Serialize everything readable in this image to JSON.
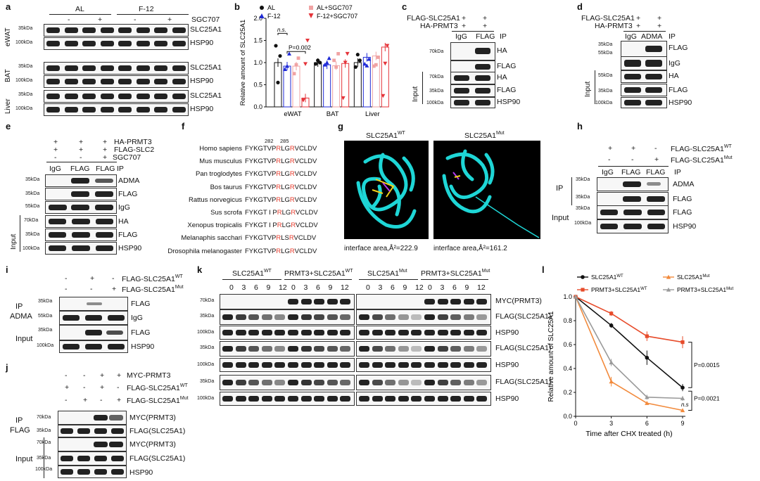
{
  "panels": {
    "a": {
      "letter": "a",
      "groups": [
        "AL",
        "F-12"
      ],
      "treat_label": "SGC707",
      "signs": [
        "-",
        "+",
        "-",
        "+"
      ],
      "tissues": [
        "eWAT",
        "BAT",
        "Liver"
      ],
      "markers": [
        "35kDa",
        "100kDa"
      ],
      "proteins": [
        "SLC25A1",
        "HSP90"
      ]
    },
    "b": {
      "letter": "b"
    },
    "c": {
      "letter": "c",
      "rows": [
        "FLAG-SLC25A1",
        "HA-PRMT3"
      ],
      "signs": [
        "+",
        "+"
      ],
      "ip_cols": [
        "IgG",
        "FLAG"
      ],
      "ip": "IP",
      "input": "Input",
      "markers": [
        "70kDa",
        "35kDa",
        "70kDa",
        "35kDa",
        "100kDa"
      ],
      "proteins": [
        "HA",
        "FLAG",
        "HA",
        "FLAG",
        "HSP90"
      ]
    },
    "d": {
      "letter": "d",
      "rows": [
        "FLAG-SLC25A1",
        "HA-PRMT3"
      ],
      "signs": [
        "+",
        "+"
      ],
      "ip_cols": [
        "IgG",
        "ADMA"
      ],
      "ip": "IP",
      "input": "Input",
      "markers": [
        "35kDa",
        "55kDa",
        "55kDa",
        "35kDa",
        "100kDa"
      ],
      "proteins": [
        "FLAG",
        "IgG",
        "HA",
        "FLAG",
        "HSP90"
      ]
    },
    "e": {
      "letter": "e",
      "rows": [
        "HA-PRMT3",
        "FLAG-SLC2",
        "SGC707"
      ],
      "signs": [
        [
          "+",
          "+",
          "+"
        ],
        [
          "+",
          "+",
          "+"
        ],
        [
          "-",
          "-",
          "+"
        ]
      ],
      "ip_cols": [
        "IgG",
        "FLAG",
        "FLAG"
      ],
      "ip": "IP",
      "input": "Input",
      "markers": [
        "35kDa",
        "35kDa",
        "55kDa",
        "70kDa",
        "35kDa",
        "100kDa"
      ],
      "proteins": [
        "ADMA",
        "FLAG",
        "IgG",
        "HA",
        "FLAG",
        "HSP90"
      ]
    },
    "f": {
      "letter": "f",
      "pos1": "282",
      "pos2": "285",
      "species": [
        "Homo sapiens",
        "Mus musculus",
        "Pan troglodytes",
        "Bos taurus",
        "Rattus norvegicus",
        "Sus scrofa",
        "Xenopus tropicalis",
        "Melanaphis sacchari",
        "Drosophila melanogaster"
      ],
      "seq": [
        [
          "FYKGTVP",
          "R",
          "LG",
          "R",
          "VCLDV"
        ],
        [
          "FYKGTVP",
          "R",
          "LG",
          "R",
          "VCLDV"
        ],
        [
          "FYKGTVP",
          "R",
          "LG",
          "R",
          "VCLDV"
        ],
        [
          "FYKGTVP",
          "R",
          "LG",
          "R",
          "VCLDV"
        ],
        [
          "FYKGTVP",
          "R",
          "LG",
          "R",
          "VCLDV"
        ],
        [
          "FYKGT I P",
          "R",
          "LG",
          "R",
          "VCLDV"
        ],
        [
          "FYKGT I P",
          "R",
          "LG",
          "R",
          "VCLDV"
        ],
        [
          "FYKGTVP",
          "R",
          "LS",
          "R",
          "VCLDV"
        ],
        [
          "FYKGTVP",
          "R",
          "LG",
          "R",
          "VCLDV"
        ]
      ]
    },
    "g": {
      "letter": "g",
      "title_wt": "SLC25A1",
      "sup_wt": "WT",
      "title_mut": "SLC25A1",
      "sup_mut": "Mut",
      "area_wt": "interface area,Å²=222.9",
      "area_mut": "interface area,Å²=161.2"
    },
    "h": {
      "letter": "h",
      "rows": [
        "FLAG-SLC25A1",
        "FLAG-SLC25A1"
      ],
      "sups": [
        "WT",
        "Mut"
      ],
      "signs": [
        [
          "+",
          "+",
          "-"
        ],
        [
          "-",
          "-",
          "+"
        ]
      ],
      "ip_cols": [
        "IgG",
        "FLAG",
        "FLAG"
      ],
      "ip": "IP",
      "ip_side": "IP",
      "input": "Input",
      "markers": [
        "35kDa",
        "35kDa",
        "35kDa",
        "100kDa"
      ],
      "proteins": [
        "ADMA",
        "FLAG",
        "FLAG",
        "HSP90"
      ]
    },
    "i": {
      "letter": "i",
      "rows": [
        "FLAG-SLC25A1",
        "FLAG-SLC25A1"
      ],
      "sups": [
        "WT",
        "Mut"
      ],
      "signs": [
        [
          "-",
          "+",
          "-"
        ],
        [
          "-",
          "-",
          "+"
        ]
      ],
      "ip_side": "IP",
      "ip_ab": "ADMA",
      "input": "Input",
      "markers": [
        "35kDa",
        "55kDa",
        "35kDa",
        "100kDa"
      ],
      "proteins": [
        "FLAG",
        "IgG",
        "FLAG",
        "HSP90"
      ]
    },
    "j": {
      "letter": "j",
      "rows": [
        "MYC-PRMT3",
        "FLAG-SLC25A1",
        "FLAG-SLC25A1"
      ],
      "sups": [
        "",
        "WT",
        "Mut"
      ],
      "signs": [
        [
          "-",
          "-",
          "+",
          "+"
        ],
        [
          "+",
          "-",
          "+",
          "-"
        ],
        [
          "-",
          "+",
          "-",
          "+"
        ]
      ],
      "ip_side": "IP",
      "ip_ab": "FLAG",
      "input": "Input",
      "markers": [
        "70kDa",
        "35kDa",
        "70kDa",
        "35kDa",
        "100kDa"
      ],
      "proteins": [
        "MYC(PRMT3)",
        "FLAG(SLC25A1)",
        "MYC(PRMT3)",
        "FLAG(SLC25A1)",
        "HSP90"
      ]
    },
    "k": {
      "letter": "k",
      "groups": [
        "SLC25A1",
        "PRMT3+SLC25A1",
        "SLC25A1",
        "PRMT3+SLC25A1"
      ],
      "group_sups": [
        "WT",
        "WT",
        "Mut",
        "Mut"
      ],
      "times": [
        "0",
        "3",
        "6",
        "9",
        "12"
      ],
      "markers": [
        "70kDa",
        "35kDa",
        "100kDa",
        "35kDa",
        "100kDa",
        "35kDa",
        "100kDa"
      ],
      "proteins": [
        "MYC(PRMT3)",
        "FLAG(SLC25A1)",
        "HSP90",
        "FLAG(SLC25A1)",
        "HSP90",
        "FLAG(SLC25A1)",
        "HSP90"
      ]
    },
    "l": {
      "letter": "l"
    }
  },
  "chart_data": [
    {
      "panel": "b",
      "type": "bar",
      "categories": [
        "eWAT",
        "BAT",
        "Liver"
      ],
      "ylabel": "Relative amount of SLC25A1",
      "ylim": [
        0,
        2.0
      ],
      "yticks": [
        "0.0",
        "0.5",
        "1.0",
        "1.5",
        "2.0"
      ],
      "series": [
        {
          "name": "AL",
          "color": "#111111",
          "values": [
            1.0,
            1.0,
            1.0
          ],
          "points": [
            [
              1.38,
              0.55,
              1.15
            ],
            [
              0.97,
              1.05,
              1.0
            ],
            [
              0.9,
              1.18,
              1.05
            ]
          ]
        },
        {
          "name": "F-12",
          "color": "#1f2ad6",
          "values": [
            0.92,
            0.95,
            1.12
          ],
          "points": [
            [
              0.85,
              0.92,
              1.2
            ],
            [
              0.95,
              1.0,
              1.1
            ],
            [
              0.97,
              0.93,
              1.08
            ]
          ]
        },
        {
          "name": "AL+SGC707",
          "color": "#f0a3a3",
          "values": [
            0.92,
            0.93,
            1.15
          ],
          "points": [
            [
              0.75,
              0.95,
              1.1
            ],
            [
              1.05,
              0.9,
              1.2
            ],
            [
              0.92,
              0.95,
              1.12
            ]
          ]
        },
        {
          "name": "F-12+SGC707",
          "color": "#e5343a",
          "values": [
            0.2,
            0.98,
            1.35
          ],
          "points": [
            [
              0.15,
              0.97,
              1.5
            ],
            [
              0.2,
              1.0,
              1.2
            ],
            [
              0.25,
              0.98,
              1.38
            ]
          ]
        }
      ],
      "annotations": [
        "n.s.",
        "P=0.002"
      ],
      "legend": "top"
    },
    {
      "panel": "l",
      "type": "line",
      "x": [
        0,
        3,
        6,
        9
      ],
      "xticks": [
        "0",
        "3",
        "6",
        "9"
      ],
      "xlabel": "Time after CHX treated (h)",
      "ylabel": "Relative amount of SLC25A1",
      "ylim": [
        0.0,
        1.0
      ],
      "yticks": [
        "0.0",
        "0.2",
        "0.4",
        "0.6",
        "0.8",
        "1.0"
      ],
      "series": [
        {
          "name": "SLC25A1",
          "sup": "WT",
          "color": "#111111",
          "values": [
            1.0,
            0.76,
            0.49,
            0.24
          ],
          "err": [
            0,
            0.02,
            0.06,
            0.03
          ]
        },
        {
          "name": "PRMT3+SLC25A1",
          "sup": "WT",
          "color": "#e74c2b",
          "values": [
            1.0,
            0.86,
            0.67,
            0.62
          ],
          "err": [
            0,
            0.02,
            0.04,
            0.05
          ]
        },
        {
          "name": "SLC25A1",
          "sup": "Mut",
          "color": "#f28a3c",
          "values": [
            1.0,
            0.29,
            0.11,
            0.05
          ],
          "err": [
            0,
            0.04,
            0.01,
            0.01
          ]
        },
        {
          "name": "PRMT3+SLC25A1",
          "sup": "Mut",
          "color": "#9a9a9a",
          "values": [
            1.0,
            0.45,
            0.16,
            0.15
          ],
          "err": [
            0,
            0.03,
            0.02,
            0.02
          ]
        }
      ],
      "annotations": [
        "P=0.0015",
        "P=0.0021",
        "n.s"
      ],
      "legend": "top"
    }
  ]
}
